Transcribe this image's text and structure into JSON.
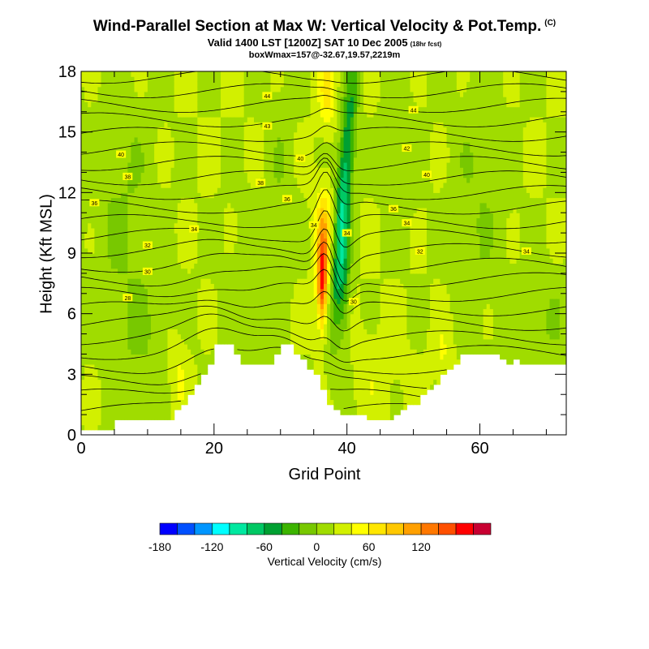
{
  "title": "Wind-Parallel Section at Max W: Vertical Velocity & Pot.Temp.",
  "copyright_mark": "(C)",
  "subtitle": "Valid 1400 LST [1200Z] SAT 10 Dec 2005",
  "forecast_hour": "(18hr fcst)",
  "boxline": "boxWmax=157@-32.67,19.57,2219m",
  "chart_data": {
    "type": "heatmap",
    "title": "Wind-Parallel Section at Max W: Vertical Velocity & Pot.Temp.",
    "xlabel": "Grid Point",
    "ylabel": "Height (Kft MSL)",
    "xlim": [
      0,
      73
    ],
    "ylim": [
      0,
      18
    ],
    "x_ticks": [
      "0",
      "20",
      "40",
      "60"
    ],
    "y_ticks": [
      "0",
      "3",
      "6",
      "9",
      "12",
      "15",
      "18"
    ],
    "max_w": {
      "value": 157,
      "x": 36,
      "y": 7.8
    },
    "terrain": {
      "x": [
        0,
        5,
        13,
        14,
        15,
        16,
        17,
        18,
        19,
        20,
        21,
        22,
        23,
        24,
        25,
        26,
        27,
        28,
        29,
        30,
        31,
        32,
        33,
        34,
        35,
        36,
        37,
        38,
        39,
        40,
        41,
        42,
        43,
        44,
        45,
        46,
        47,
        48,
        49,
        50,
        51,
        52,
        53,
        54,
        55,
        56,
        57,
        58,
        59,
        60,
        61,
        62,
        63,
        64,
        65,
        66,
        67,
        68,
        73
      ],
      "height": [
        0.3,
        0.7,
        0.7,
        1.2,
        1.6,
        2.0,
        2.5,
        3.0,
        3.6,
        4.4,
        4.4,
        4.4,
        4.0,
        3.6,
        3.6,
        3.6,
        3.6,
        3.6,
        3.9,
        4.4,
        4.4,
        4.0,
        3.7,
        3.3,
        3.0,
        2.2,
        1.5,
        1.2,
        1.0,
        0.9,
        0.9,
        0.9,
        0.7,
        0.7,
        0.7,
        0.8,
        1.0,
        1.3,
        1.5,
        1.6,
        1.9,
        2.2,
        2.5,
        2.9,
        3.3,
        3.6,
        3.9,
        4.1,
        4.1,
        4.1,
        4.1,
        3.9,
        3.7,
        3.6,
        3.8,
        3.6,
        3.6,
        3.6,
        3.6
      ]
    },
    "theta_labels": [
      {
        "text": "44",
        "x": 28,
        "y": 16.8
      },
      {
        "text": "43",
        "x": 28,
        "y": 15.3
      },
      {
        "text": "44",
        "x": 50,
        "y": 16.1
      },
      {
        "text": "42",
        "x": 49,
        "y": 14.2
      },
      {
        "text": "40",
        "x": 6,
        "y": 13.9
      },
      {
        "text": "40",
        "x": 33,
        "y": 13.7
      },
      {
        "text": "40",
        "x": 52,
        "y": 12.9
      },
      {
        "text": "38",
        "x": 7,
        "y": 12.8
      },
      {
        "text": "38",
        "x": 27,
        "y": 12.5
      },
      {
        "text": "36",
        "x": 2,
        "y": 11.5
      },
      {
        "text": "36",
        "x": 31,
        "y": 11.7
      },
      {
        "text": "36",
        "x": 47,
        "y": 11.2
      },
      {
        "text": "34",
        "x": 17,
        "y": 10.2
      },
      {
        "text": "34",
        "x": 35,
        "y": 10.4
      },
      {
        "text": "34",
        "x": 40,
        "y": 10.0
      },
      {
        "text": "34",
        "x": 49,
        "y": 10.5
      },
      {
        "text": "34",
        "x": 67,
        "y": 9.1
      },
      {
        "text": "32",
        "x": 10,
        "y": 9.4
      },
      {
        "text": "32",
        "x": 51,
        "y": 9.1
      },
      {
        "text": "30",
        "x": 10,
        "y": 8.1
      },
      {
        "text": "30",
        "x": 41,
        "y": 6.6
      },
      {
        "text": "28",
        "x": 7,
        "y": 6.8
      }
    ],
    "colorbar": {
      "label": "Vertical Velocity (cm/s)",
      "tick_labels": [
        "-180",
        "-120",
        "-60",
        "0",
        "60",
        "120"
      ],
      "tick_values": [
        -180,
        -120,
        -60,
        0,
        60,
        120
      ],
      "min": -180,
      "max": 150,
      "step": 20,
      "colors": [
        "#0000ff",
        "#0050ff",
        "#0096ff",
        "#00ffff",
        "#00e8a0",
        "#00c864",
        "#00a032",
        "#3cb400",
        "#78c800",
        "#a0dc00",
        "#d2f000",
        "#ffff00",
        "#ffe600",
        "#ffc800",
        "#ffa000",
        "#ff7800",
        "#ff5000",
        "#ff0000",
        "#c80032"
      ]
    }
  }
}
